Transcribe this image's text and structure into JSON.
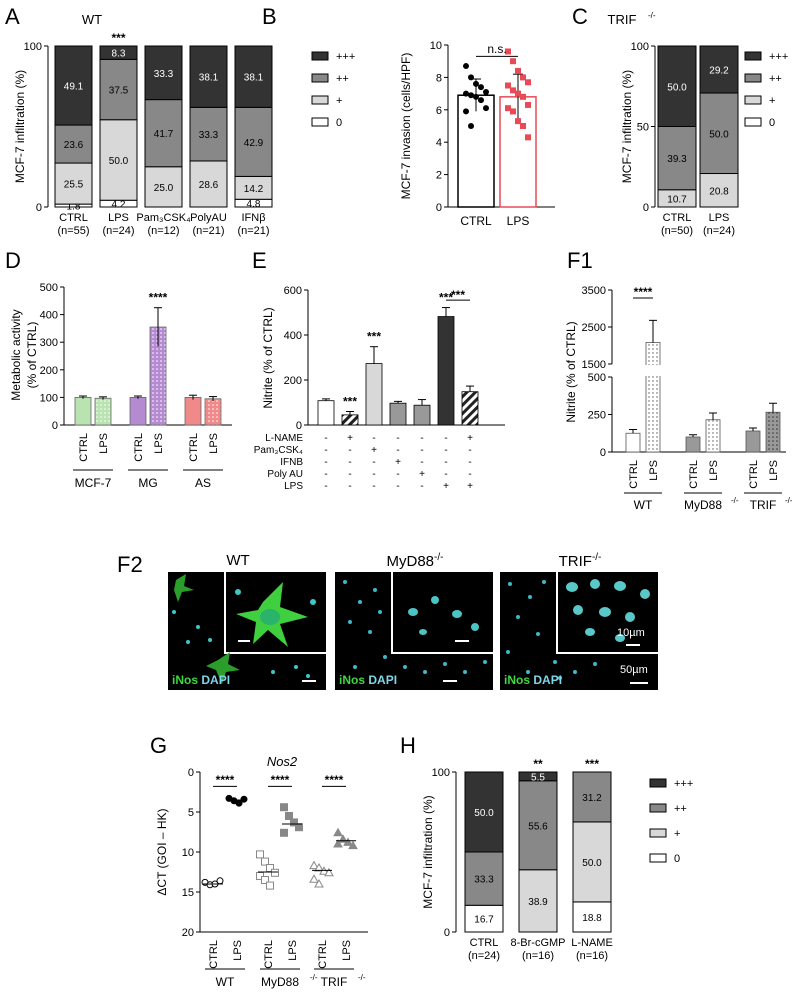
{
  "panel_letters": {
    "A": "A",
    "B": "B",
    "C": "C",
    "D": "D",
    "E": "E",
    "F1": "F1",
    "F2": "F2",
    "G": "G",
    "H": "H"
  },
  "colors": {
    "plus3": "#333333",
    "plus2": "#888888",
    "plus1": "#d8d8d8",
    "zero": "#ffffff",
    "green": "#b9e3b0",
    "purple": "#b48bd0",
    "red": "#f08a8a",
    "lps_red": "#e84b57"
  },
  "micrographs": {
    "titles": [
      "WT",
      "MyD88",
      "TRIF"
    ],
    "title_sup": "-/-",
    "stain_green": "iNos",
    "stain_blue": "DAPI",
    "scale_inset": "10µm",
    "scale_main": "50µm"
  },
  "chart_data": [
    {
      "panel": "A",
      "type": "bar",
      "stacked": true,
      "title": "WT",
      "ylabel": "MCF-7 infiltration (%)",
      "ylim": [
        0,
        100
      ],
      "yticks": [
        0,
        100
      ],
      "categories": [
        "CTRL",
        "LPS",
        "Pam₃CSK₄",
        "PolyAU",
        "IFNβ"
      ],
      "category_n": [
        "(n=55)",
        "(n=24)",
        "(n=12)",
        "(n=21)",
        "(n=21)"
      ],
      "significance": [
        "",
        "***",
        "",
        "",
        ""
      ],
      "series": [
        {
          "name": "0",
          "color": "#ffffff",
          "values": [
            1.8,
            4.2,
            0,
            0,
            4.8
          ]
        },
        {
          "name": "+",
          "color": "#d8d8d8",
          "values": [
            25.5,
            50.0,
            25.0,
            28.6,
            14.2
          ]
        },
        {
          "name": "++",
          "color": "#888888",
          "values": [
            23.6,
            37.5,
            41.7,
            33.3,
            42.9
          ]
        },
        {
          "name": "+++",
          "color": "#333333",
          "values": [
            49.1,
            8.3,
            33.3,
            38.1,
            38.1
          ]
        }
      ],
      "legend": [
        "+++",
        "++",
        "+",
        "0"
      ]
    },
    {
      "panel": "B",
      "type": "bar",
      "ylabel": "MCF-7 invasion (cells/HPF)",
      "ylim": [
        0,
        10
      ],
      "yticks": [
        0,
        2,
        4,
        6,
        8,
        10
      ],
      "categories": [
        "CTRL",
        "LPS"
      ],
      "values": [
        6.9,
        6.8
      ],
      "errors": [
        1.0,
        1.4
      ],
      "annotation": "n.s.",
      "points": [
        [
          8.7,
          8.0,
          7.6,
          7.4,
          7.1,
          7.0,
          6.9,
          6.8,
          6.6,
          6.1,
          5.9,
          5.0
        ],
        [
          9.6,
          9.0,
          8.4,
          8.0,
          7.7,
          7.5,
          7.2,
          7.0,
          6.8,
          6.3,
          6.1,
          5.9,
          5.3,
          5.0,
          4.3
        ]
      ]
    },
    {
      "panel": "C",
      "type": "bar",
      "stacked": true,
      "title": "TRIF",
      "title_sup": "-/-",
      "ylabel": "MCF-7 infiltration (%)",
      "ylim": [
        0,
        100
      ],
      "yticks": [
        0,
        50,
        100
      ],
      "categories": [
        "CTRL",
        "LPS"
      ],
      "category_n": [
        "(n=50)",
        "(n=24)"
      ],
      "series": [
        {
          "name": "+",
          "color": "#d8d8d8",
          "values": [
            10.7,
            20.8
          ]
        },
        {
          "name": "++",
          "color": "#888888",
          "values": [
            39.3,
            50.0
          ]
        },
        {
          "name": "+++",
          "color": "#333333",
          "values": [
            50.0,
            29.2
          ]
        }
      ],
      "legend": [
        "+++",
        "++",
        "+",
        "0"
      ]
    },
    {
      "panel": "D",
      "type": "bar",
      "ylabel": "Metabolic activity",
      "ylabel2": "(% of CTRL)",
      "ylim": [
        0,
        500
      ],
      "yticks": [
        0,
        100,
        200,
        300,
        400,
        500
      ],
      "groups": [
        "MCF-7",
        "MG",
        "AS"
      ],
      "categories": [
        "CTRL",
        "LPS",
        "CTRL",
        "LPS",
        "CTRL",
        "LPS"
      ],
      "values": [
        100,
        97,
        100,
        355,
        100,
        95
      ],
      "errors": [
        5,
        5,
        5,
        70,
        8,
        8
      ],
      "significance": [
        "",
        "",
        "",
        "****",
        "",
        ""
      ]
    },
    {
      "panel": "E",
      "type": "bar",
      "ylabel": "Nitrite (% of CTRL)",
      "ylim": [
        0,
        600
      ],
      "yticks": [
        0,
        200,
        400,
        600
      ],
      "values": [
        108,
        45,
        273,
        97,
        88,
        482,
        148
      ],
      "errors": [
        8,
        15,
        75,
        8,
        25,
        40,
        25
      ],
      "significance": [
        "",
        "***",
        "***",
        "",
        "",
        "***",
        ""
      ],
      "bracket_label": "***",
      "treatments": [
        "L-NAME",
        "Pam₃CSK₄",
        "IFNB",
        "Poly AU",
        "LPS"
      ],
      "matrix": [
        [
          "-",
          "+",
          "-",
          "-",
          "-",
          "-",
          "+"
        ],
        [
          "-",
          "-",
          "+",
          "-",
          "-",
          "-",
          "-"
        ],
        [
          "-",
          "-",
          "-",
          "+",
          "-",
          "-",
          "-"
        ],
        [
          "-",
          "-",
          "-",
          "-",
          "+",
          "-",
          "-"
        ],
        [
          "-",
          "-",
          "-",
          "-",
          "-",
          "+",
          "+"
        ]
      ]
    },
    {
      "panel": "F1",
      "type": "bar",
      "ylabel": "Nitrite (% of CTRL)",
      "yticks": [
        0,
        250,
        500,
        1500,
        2500,
        3500
      ],
      "axis_break": [
        500,
        1500
      ],
      "groups": [
        "WT",
        "MyD88",
        "TRIF"
      ],
      "group_sup": "-/-",
      "categories": [
        "CTRL",
        "LPS",
        "CTRL",
        "LPS",
        "CTRL",
        "LPS"
      ],
      "values": [
        125,
        2080,
        100,
        215,
        140,
        265
      ],
      "errors": [
        25,
        600,
        15,
        45,
        20,
        60
      ],
      "bracket_label": "****"
    },
    {
      "panel": "G",
      "type": "scatter",
      "title": "Nos2",
      "ylabel": "ΔCT (GOI – HK)",
      "ylim": [
        0,
        20
      ],
      "inverted": true,
      "yticks": [
        0,
        5,
        10,
        15,
        20
      ],
      "groups": [
        "WT",
        "MyD88",
        "TRIF"
      ],
      "group_sup": "-/-",
      "categories": [
        "CTRL",
        "LPS",
        "CTRL",
        "LPS",
        "CTRL",
        "LPS"
      ],
      "bracket_labels": [
        "****",
        "****",
        "****"
      ],
      "points": [
        [
          13.8,
          14.1,
          14.0,
          13.6
        ],
        [
          3.3,
          3.6,
          3.9,
          3.4
        ],
        [
          10.3,
          11.2,
          12.0,
          12.6,
          13.0,
          13.5,
          14.2
        ],
        [
          4.4,
          5.5,
          6.3,
          6.9,
          7.6
        ],
        [
          11.7,
          12.0,
          12.4,
          12.6,
          13.4,
          14.0
        ],
        [
          7.6,
          8.4,
          8.8,
          9.2,
          9.0
        ]
      ],
      "medians": [
        14.0,
        3.5,
        12.5,
        6.5,
        12.3,
        8.6
      ]
    },
    {
      "panel": "H",
      "type": "bar",
      "stacked": true,
      "ylabel": "MCF-7 infiltration (%)",
      "ylim": [
        0,
        100
      ],
      "yticks": [
        0,
        100
      ],
      "categories": [
        "CTRL",
        "8-Br-cGMP",
        "L-NAME"
      ],
      "category_n": [
        "(n=24)",
        "(n=16)",
        "(n=16)"
      ],
      "significance": [
        "",
        "**",
        "***"
      ],
      "series": [
        {
          "name": "0",
          "color": "#ffffff",
          "values": [
            16.7,
            0,
            18.8
          ]
        },
        {
          "name": "+",
          "color": "#d8d8d8",
          "values": [
            0,
            38.9,
            50.0
          ]
        },
        {
          "name": "++",
          "color": "#888888",
          "values": [
            33.3,
            55.6,
            31.2
          ]
        },
        {
          "name": "+++",
          "color": "#333333",
          "values": [
            50.0,
            5.5,
            0
          ]
        }
      ],
      "legend": [
        "+++",
        "++",
        "+",
        "0"
      ]
    }
  ]
}
